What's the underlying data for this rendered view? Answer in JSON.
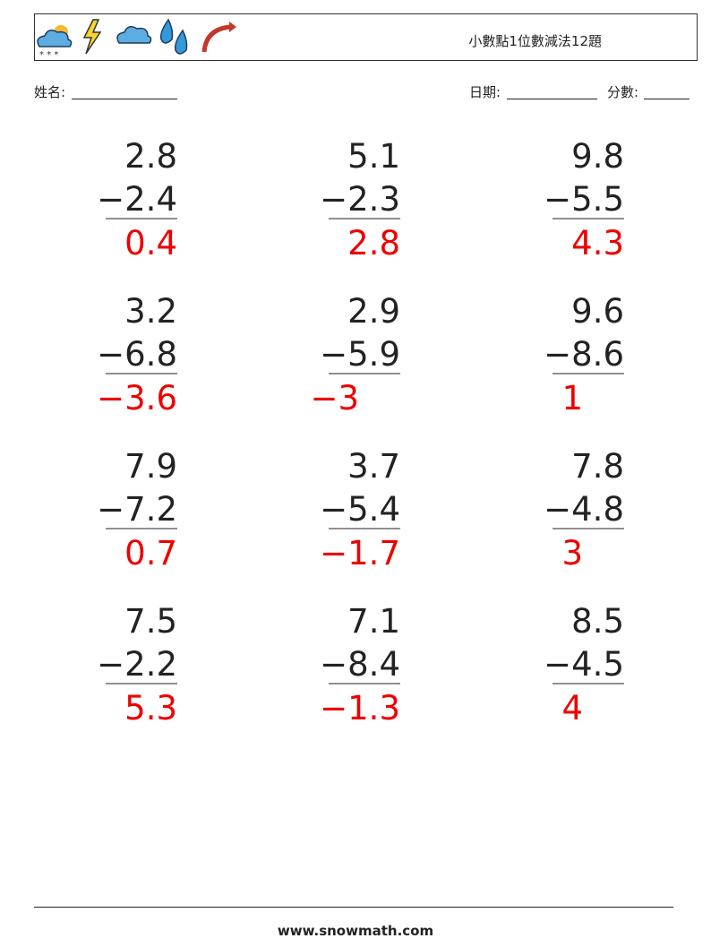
{
  "header": {
    "title": "小數點1位數減法12題"
  },
  "fields": {
    "name": "姓名:",
    "date": "日期:",
    "score": "分數:"
  },
  "problems": [
    {
      "top": "2.8",
      "bottom": "−2.4",
      "answer": "0.4"
    },
    {
      "top": "5.1",
      "bottom": "−2.3",
      "answer": "2.8"
    },
    {
      "top": "9.8",
      "bottom": "−5.5",
      "answer": "4.3"
    },
    {
      "top": "3.2",
      "bottom": "−6.8",
      "answer": "−3.6"
    },
    {
      "top": "2.9",
      "bottom": "−5.9",
      "answer": "−3"
    },
    {
      "top": "9.6",
      "bottom": "−8.6",
      "answer": "1"
    },
    {
      "top": "7.9",
      "bottom": "−7.2",
      "answer": "0.7"
    },
    {
      "top": "3.7",
      "bottom": "−5.4",
      "answer": "−1.7"
    },
    {
      "top": "7.8",
      "bottom": "−4.8",
      "answer": "3"
    },
    {
      "top": "7.5",
      "bottom": "−2.2",
      "answer": "5.3"
    },
    {
      "top": "7.1",
      "bottom": "−8.4",
      "answer": "−1.3"
    },
    {
      "top": "8.5",
      "bottom": "−4.5",
      "answer": "4"
    }
  ],
  "footer": {
    "site": "www.snowmath.com"
  }
}
